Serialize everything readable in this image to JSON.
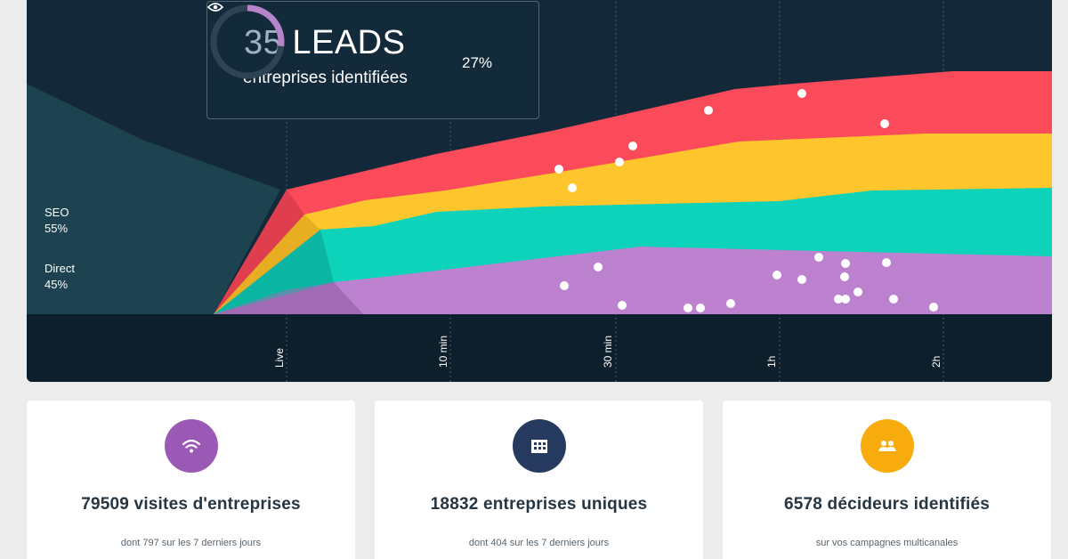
{
  "leads": {
    "count": "35",
    "label": "LEADS",
    "subtitle": "entreprises identifiées",
    "percent_text": "27%",
    "percent_value": 27
  },
  "sources": [
    {
      "name": "SEO",
      "share": "55%"
    },
    {
      "name": "Direct",
      "share": "45%"
    }
  ],
  "timeline_ticks": [
    "Live",
    "10 min",
    "30 min",
    "1h",
    "2h"
  ],
  "colors": {
    "panel_bg": "#13293a",
    "red": "#fb4a5a",
    "yellow": "#fec62c",
    "teal": "#0dd3bb",
    "purple": "#bc82d0",
    "ring_accent": "#b685c9"
  },
  "stats": [
    {
      "icon": "wifi-icon",
      "color": "#9b59b6",
      "title": "79509 visites d'entreprises",
      "desc": "dont 797 sur les 7 derniers jours"
    },
    {
      "icon": "building-icon",
      "color": "#253a5e",
      "title": "18832 entreprises uniques",
      "desc": "dont 404 sur les 7 derniers jours"
    },
    {
      "icon": "users-icon",
      "color": "#f8ab0c",
      "title": "6578 décideurs identifiés",
      "desc": "sur vos campagnes multicanales"
    }
  ]
}
